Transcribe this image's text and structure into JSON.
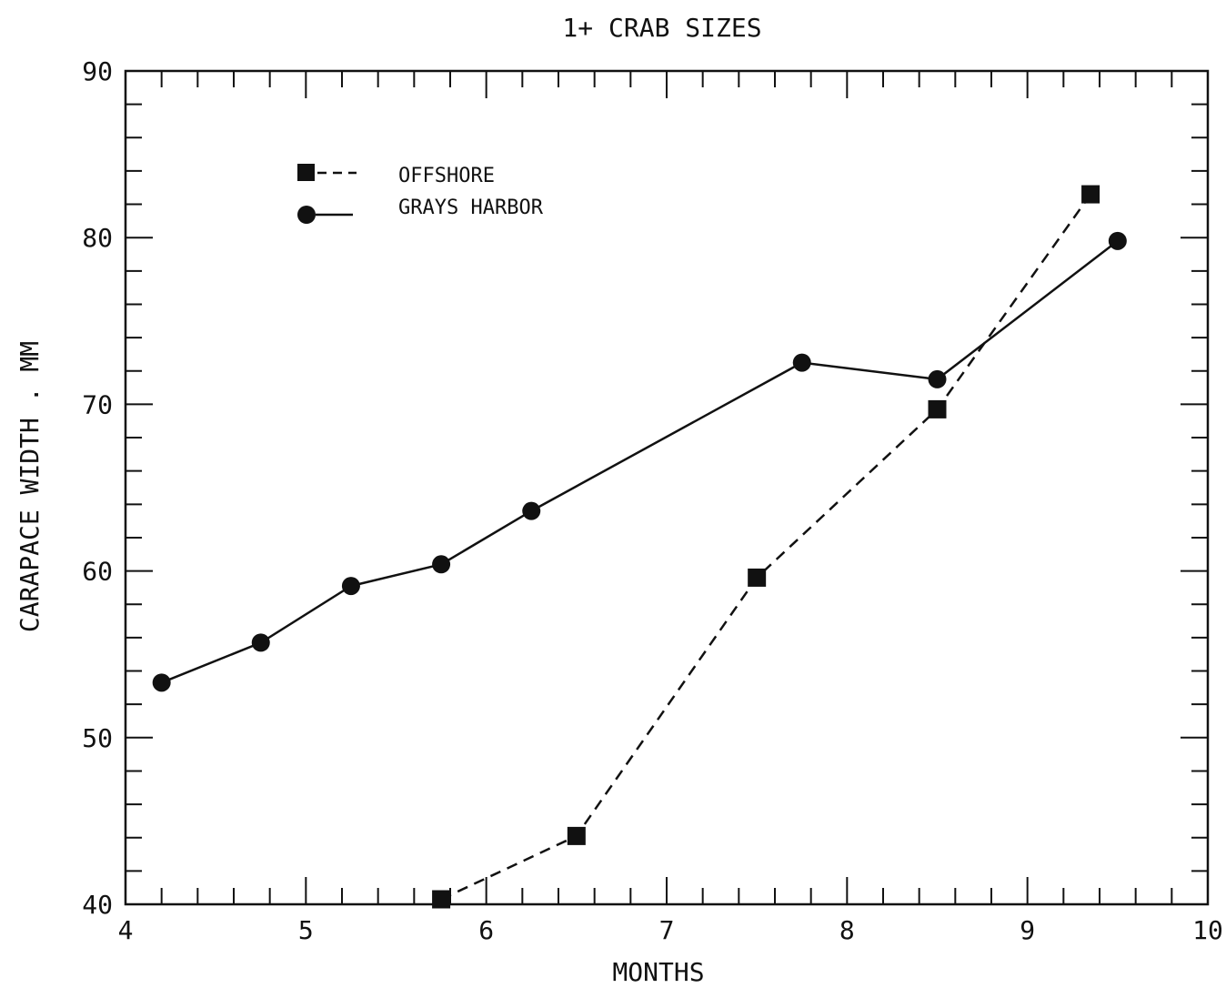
{
  "chart_data": {
    "type": "line",
    "title": "1+ CRAB SIZES",
    "xlabel": "MONTHS",
    "ylabel": "CARAPACE WIDTH . MM",
    "xlim": [
      4,
      10
    ],
    "ylim": [
      40,
      90
    ],
    "x_ticks": [
      "4",
      "5",
      "6",
      "7",
      "8",
      "9",
      "10"
    ],
    "y_ticks": [
      "40",
      "50",
      "60",
      "70",
      "80",
      "90"
    ],
    "grid": false,
    "legend_position": "top-left",
    "series": [
      {
        "name": "OFFSHORE",
        "line_style": "dashed",
        "marker": "square",
        "x": [
          5.75,
          6.5,
          7.5,
          8.5,
          9.35
        ],
        "y": [
          40.3,
          44.1,
          59.6,
          69.7,
          82.6
        ]
      },
      {
        "name": "GRAYS HARBOR",
        "line_style": "solid",
        "marker": "circle",
        "x": [
          4.2,
          4.75,
          5.25,
          5.75,
          6.25,
          7.75,
          8.5,
          9.5
        ],
        "y": [
          53.3,
          55.7,
          59.1,
          60.4,
          63.6,
          72.5,
          71.5,
          79.8
        ]
      }
    ],
    "colors": {
      "ink": "#111111",
      "background": "#ffffff"
    }
  }
}
